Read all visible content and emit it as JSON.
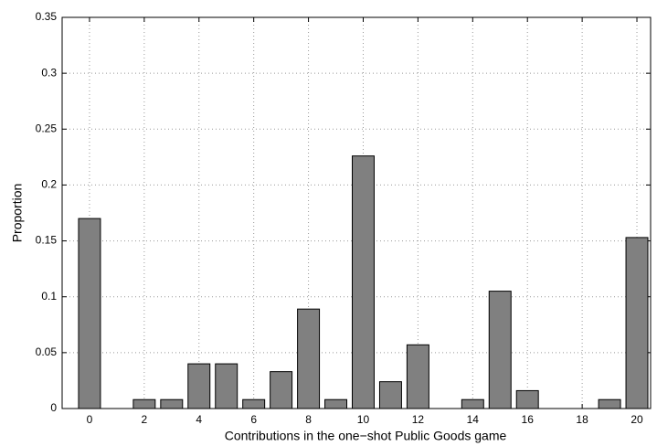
{
  "chart_data": {
    "type": "bar",
    "x": [
      0,
      1,
      2,
      3,
      4,
      5,
      6,
      7,
      8,
      9,
      10,
      11,
      12,
      13,
      14,
      15,
      16,
      17,
      18,
      19,
      20
    ],
    "values": [
      0.17,
      0,
      0.008,
      0.008,
      0.04,
      0.04,
      0.008,
      0.033,
      0.089,
      0.008,
      0.226,
      0.024,
      0.057,
      0,
      0.008,
      0.105,
      0.016,
      0,
      0,
      0.008,
      0.153
    ],
    "color": "#808080",
    "xlabel": "Contributions in the one−shot Public Goods game",
    "ylabel": "Proportion",
    "xlim": [
      -1,
      20.5
    ],
    "xticks": [
      0,
      2,
      4,
      6,
      8,
      10,
      12,
      14,
      16,
      18,
      20
    ],
    "ylim": [
      0,
      0.35
    ],
    "yticks": [
      0,
      0.05,
      0.1,
      0.15,
      0.2,
      0.25,
      0.3,
      0.35
    ],
    "grid": true
  }
}
